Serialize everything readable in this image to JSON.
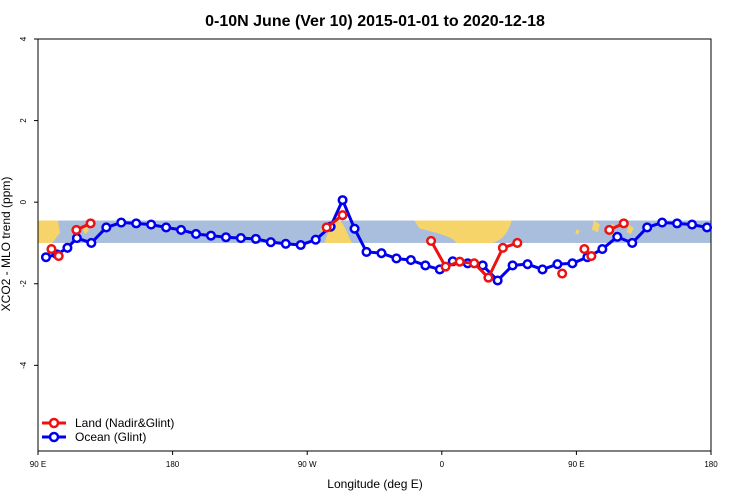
{
  "chart_data": {
    "type": "line",
    "title": "0-10N June (Ver 10)   2015-01-01 to 2020-12-18",
    "xlabel": "Longitude (deg E)",
    "ylabel": "XCO2 - MLO trend (ppm)",
    "xlim": [
      90,
      360
    ],
    "ylim": [
      -6.1,
      4
    ],
    "x_ticks": [
      {
        "value": 90,
        "label": "90 E"
      },
      {
        "value": 144,
        "label": "180"
      },
      {
        "value": 198,
        "label": "90 W"
      },
      {
        "value": 252,
        "label": "0"
      },
      {
        "value": 306,
        "label": "90 E"
      },
      {
        "value": 360,
        "label": "180"
      }
    ],
    "y_ticks": [
      {
        "value": -4,
        "label": "-4"
      },
      {
        "value": -2,
        "label": "-2"
      },
      {
        "value": 0,
        "label": "0"
      },
      {
        "value": 2,
        "label": "2"
      },
      {
        "value": 4,
        "label": "4"
      }
    ],
    "map_band": {
      "ymin": -1.0,
      "ymax": -0.45,
      "ocean_color": "#a9bedd",
      "land_color": "#f7d46a"
    },
    "series": [
      {
        "name": "Land (Nadir&Glint)",
        "color": "#ee1111",
        "segments": [
          {
            "x": [
              95.4,
              98.3
            ],
            "y": [
              -1.15,
              -1.32
            ]
          },
          {
            "x": [
              105.4,
              111.1
            ],
            "y": [
              -0.68,
              -0.52
            ]
          },
          {
            "x": [
              205.8,
              212.2
            ],
            "y": [
              -0.62,
              -0.32
            ]
          },
          {
            "x": [
              247.7,
              253.5,
              259.2,
              265.0,
              270.7,
              276.5,
              282.3,
              286.7
            ],
            "y": [
              -0.95,
              -1.58,
              -1.46,
              -1.5,
              -1.85,
              -1.12,
              -1.0,
              null
            ]
          },
          {
            "x": [
              300.3,
              309.2,
              312.0
            ],
            "y": [
              -1.75,
              null,
              null
            ]
          },
          {
            "x": [
              309.2,
              312.0
            ],
            "y": [
              -1.15,
              -1.32
            ]
          },
          {
            "x": [
              319.2,
              325.0
            ],
            "y": [
              -0.68,
              -0.52
            ]
          }
        ]
      },
      {
        "name": "Ocean (Glint)",
        "color": "#0000ee",
        "x": [
          93.2,
          97.6,
          101.8,
          105.6,
          111.4,
          117.4,
          123.4,
          129.4,
          135.4,
          141.4,
          147.4,
          153.4,
          159.4,
          165.4,
          171.4,
          177.4,
          183.4,
          189.4,
          195.4,
          201.4,
          207.4,
          212.2,
          217.0,
          221.8,
          227.8,
          233.8,
          239.6,
          245.4,
          251.2,
          256.4,
          262.4,
          268.4,
          274.4,
          280.4,
          286.4,
          292.4,
          298.4,
          304.4,
          310.4,
          316.4,
          322.4,
          328.4,
          334.4,
          340.4,
          346.4,
          352.4,
          358.4
        ],
        "y": [
          -1.35,
          -1.28,
          -1.12,
          -0.88,
          -1.0,
          -0.62,
          -0.5,
          -0.52,
          -0.55,
          -0.62,
          -0.68,
          -0.78,
          -0.82,
          -0.86,
          -0.88,
          -0.9,
          -0.98,
          -1.02,
          -1.05,
          -0.92,
          -0.6,
          0.05,
          -0.65,
          -1.22,
          -1.25,
          -1.38,
          -1.42,
          -1.55,
          -1.65,
          -1.45,
          -1.5,
          -1.55,
          -1.92,
          -1.55,
          -1.52,
          -1.65,
          -1.52,
          -1.5,
          -1.35,
          -1.15,
          -0.85,
          -1.0,
          -0.62,
          -0.5,
          -0.52,
          -0.55,
          -0.62
        ]
      }
    ],
    "legend": [
      {
        "label": "Land (Nadir&Glint)",
        "color": "#ee1111"
      },
      {
        "label": "Ocean (Glint)",
        "color": "#0000ee"
      }
    ],
    "legend_position": "bottom-left",
    "grid": false
  }
}
